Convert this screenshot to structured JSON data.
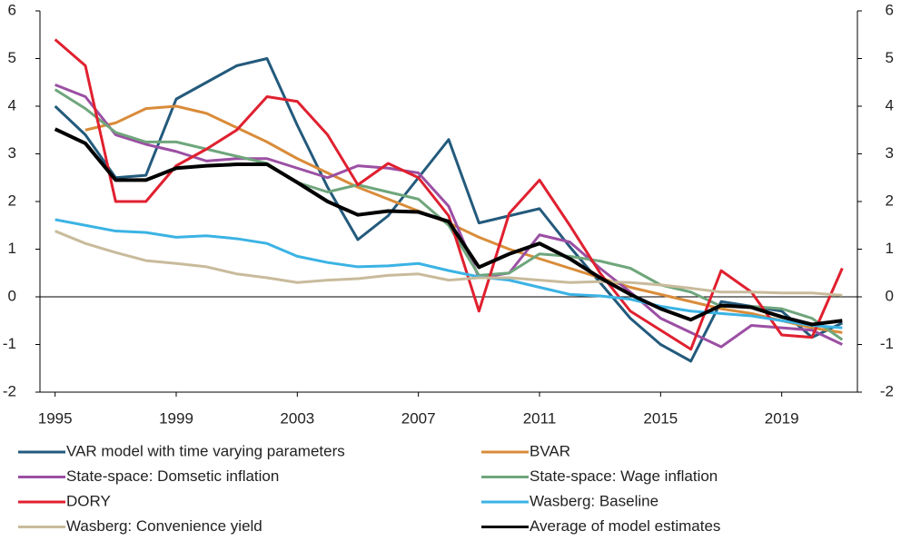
{
  "chart_data": {
    "type": "line",
    "x": [
      1995,
      1996,
      1997,
      1998,
      1999,
      2000,
      2001,
      2002,
      2003,
      2004,
      2005,
      2006,
      2007,
      2008,
      2009,
      2010,
      2011,
      2012,
      2013,
      2014,
      2015,
      2016,
      2017,
      2018,
      2019,
      2020,
      2021
    ],
    "xlim": [
      1994.5,
      2021.5
    ],
    "xticks": [
      1995,
      1999,
      2003,
      2007,
      2011,
      2015,
      2019
    ],
    "ylim": [
      -2,
      6
    ],
    "yticks": [
      -2,
      -1,
      0,
      1,
      2,
      3,
      4,
      5,
      6
    ],
    "y2lim": [
      -2,
      6
    ],
    "y2ticks": [
      -2,
      -1,
      0,
      1,
      2,
      3,
      4,
      5,
      6
    ],
    "series": [
      {
        "name": "VAR model with time varying parameters",
        "color": "#235a7c",
        "values": [
          4.0,
          3.4,
          2.5,
          2.55,
          4.15,
          4.5,
          4.85,
          5.0,
          3.6,
          2.3,
          1.2,
          1.7,
          2.5,
          3.3,
          1.55,
          1.7,
          1.85,
          1.05,
          0.3,
          -0.45,
          -1.0,
          -1.35,
          -0.1,
          -0.2,
          -0.3,
          -0.85,
          -0.55
        ]
      },
      {
        "name": "BVAR",
        "color": "#d98c3a",
        "values": [
          null,
          3.5,
          3.65,
          3.95,
          4.0,
          3.85,
          3.55,
          3.25,
          2.9,
          2.6,
          2.3,
          2.05,
          1.8,
          1.55,
          1.25,
          1.0,
          0.8,
          0.6,
          0.4,
          0.2,
          0.05,
          -0.1,
          -0.25,
          -0.35,
          -0.5,
          -0.65,
          -0.75
        ]
      },
      {
        "name": "State-space: Domsetic inflation",
        "color": "#9b4fa3",
        "values": [
          4.45,
          4.2,
          3.4,
          3.2,
          3.05,
          2.85,
          2.9,
          2.9,
          2.7,
          2.5,
          2.75,
          2.7,
          2.6,
          1.9,
          0.4,
          0.5,
          1.3,
          1.15,
          0.6,
          0.1,
          -0.45,
          -0.75,
          -1.05,
          -0.6,
          -0.65,
          -0.7,
          -1.0
        ]
      },
      {
        "name": "State-space: Wage inflation",
        "color": "#6fa67c",
        "values": [
          4.35,
          3.95,
          3.45,
          3.25,
          3.25,
          3.1,
          2.95,
          2.8,
          2.4,
          2.2,
          2.35,
          2.2,
          2.05,
          1.5,
          0.45,
          0.5,
          0.9,
          0.85,
          0.75,
          0.6,
          0.25,
          0.1,
          -0.2,
          -0.2,
          -0.25,
          -0.45,
          -0.9
        ]
      },
      {
        "name": "DORY",
        "color": "#e0202f",
        "values": [
          5.4,
          4.85,
          2.0,
          2.0,
          2.75,
          3.1,
          3.5,
          4.2,
          4.1,
          3.4,
          2.35,
          2.8,
          2.5,
          1.7,
          -0.3,
          1.75,
          2.45,
          1.5,
          0.5,
          -0.3,
          -0.7,
          -1.1,
          0.55,
          0.1,
          -0.8,
          -0.85,
          0.6
        ]
      },
      {
        "name": "Wasberg: Baseline",
        "color": "#3bb3e4",
        "values": [
          1.62,
          1.5,
          1.38,
          1.35,
          1.25,
          1.28,
          1.22,
          1.12,
          0.85,
          0.72,
          0.63,
          0.65,
          0.7,
          0.55,
          0.42,
          0.35,
          0.2,
          0.05,
          0.02,
          -0.05,
          -0.2,
          -0.3,
          -0.35,
          -0.4,
          -0.5,
          -0.6,
          -0.65
        ]
      },
      {
        "name": "Wasberg: Convenience yield",
        "color": "#c8bb9b",
        "values": [
          1.38,
          1.12,
          0.93,
          0.76,
          0.7,
          0.63,
          0.48,
          0.4,
          0.3,
          0.35,
          0.38,
          0.45,
          0.48,
          0.35,
          0.4,
          0.4,
          0.35,
          0.3,
          0.32,
          0.3,
          0.25,
          0.18,
          0.1,
          0.1,
          0.08,
          0.08,
          0.03
        ]
      },
      {
        "name": "Average of model estimates",
        "color": "#000000",
        "values": [
          3.52,
          3.22,
          2.45,
          2.45,
          2.7,
          2.75,
          2.78,
          2.78,
          2.4,
          2.0,
          1.72,
          1.8,
          1.78,
          1.58,
          0.62,
          0.9,
          1.12,
          0.8,
          0.4,
          0.05,
          -0.25,
          -0.48,
          -0.18,
          -0.22,
          -0.42,
          -0.58,
          -0.5
        ]
      }
    ]
  }
}
